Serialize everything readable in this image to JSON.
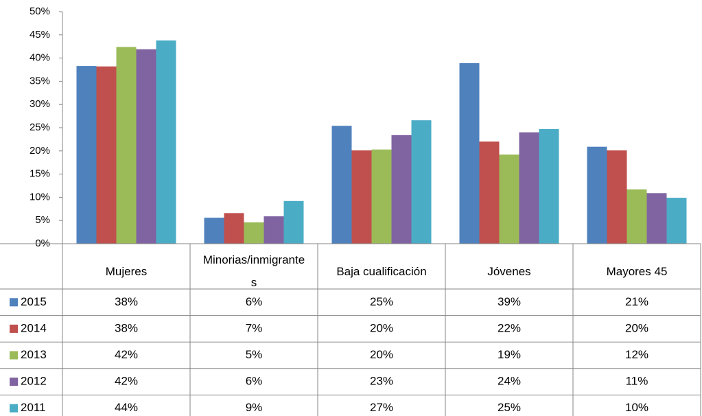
{
  "chart_data": {
    "type": "bar",
    "categories": [
      "Mujeres",
      "Minorias/inmigrantes",
      "Baja cualificación",
      "Jóvenes",
      "Mayores 45"
    ],
    "series": [
      {
        "name": "2015",
        "color": "#4f81bd",
        "values": [
          38.3,
          5.6,
          25.4,
          38.9,
          20.9
        ],
        "value_labels": [
          "38%",
          "6%",
          "25%",
          "39%",
          "21%"
        ]
      },
      {
        "name": "2014",
        "color": "#c0504d",
        "values": [
          38.2,
          6.6,
          20.1,
          22.0,
          20.1
        ],
        "value_labels": [
          "38%",
          "7%",
          "20%",
          "22%",
          "20%"
        ]
      },
      {
        "name": "2013",
        "color": "#9bbb59",
        "values": [
          42.4,
          4.6,
          20.3,
          19.2,
          11.7
        ],
        "value_labels": [
          "42%",
          "5%",
          "20%",
          "19%",
          "12%"
        ]
      },
      {
        "name": "2012",
        "color": "#8064a2",
        "values": [
          41.9,
          5.9,
          23.4,
          24.0,
          10.9
        ],
        "value_labels": [
          "42%",
          "6%",
          "23%",
          "24%",
          "11%"
        ]
      },
      {
        "name": "2011",
        "color": "#4bacc6",
        "values": [
          43.8,
          9.2,
          26.6,
          24.7,
          9.9
        ],
        "value_labels": [
          "44%",
          "9%",
          "27%",
          "25%",
          "10%"
        ]
      }
    ],
    "ylim": [
      0,
      50
    ],
    "yticks": [
      {
        "value": 0,
        "label": "0%"
      },
      {
        "value": 5,
        "label": "5%"
      },
      {
        "value": 10,
        "label": "10%"
      },
      {
        "value": 15,
        "label": "15%"
      },
      {
        "value": 20,
        "label": "20%"
      },
      {
        "value": 25,
        "label": "25%"
      },
      {
        "value": 30,
        "label": "30%"
      },
      {
        "value": 35,
        "label": "35%"
      },
      {
        "value": 40,
        "label": "40%"
      },
      {
        "value": 45,
        "label": "45%"
      },
      {
        "value": 50,
        "label": "50%"
      }
    ],
    "grid": false
  }
}
